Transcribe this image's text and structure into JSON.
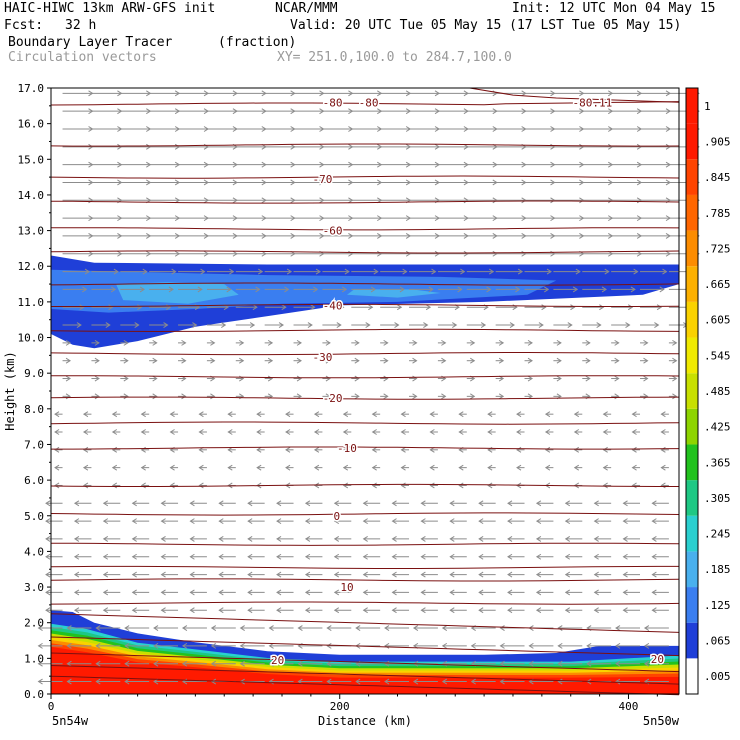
{
  "header": {
    "model": "HAIC-HIWC 13km ARW-GFS init",
    "org": "NCAR/MMM",
    "init": "Init: 12 UTC Mon 04 May 15",
    "fcst_label": "Fcst:",
    "fcst_value": "32 h",
    "valid": "Valid: 20 UTC Tue 05 May 15 (17 LST Tue 05 May 15)",
    "field": "Boundary Layer Tracer",
    "field_units": "(fraction)",
    "overlay": "Circulation vectors",
    "xy": "XY= 251.0,100.0 to 284.7,100.0"
  },
  "colors": {
    "contour_line": "#7a1010",
    "vector": "#8c8c8c",
    "low_blue": "#1f3fd8",
    "mid_blue": "#3a7ef0",
    "light_blue": "#49b0ee",
    "surface_red": "#ff1a00"
  },
  "chart_data": {
    "type": "heatmap",
    "title": "Boundary Layer Tracer (fraction)",
    "xlabel": "Distance (km)",
    "ylabel": "Height (km)",
    "xlim": [
      0,
      435
    ],
    "ylim": [
      0,
      17
    ],
    "x_ticks": [
      "0",
      "200",
      "400"
    ],
    "y_ticks": [
      "0.0",
      "1.0",
      "2.0",
      "3.0",
      "4.0",
      "5.0",
      "6.0",
      "7.0",
      "8.0",
      "9.0",
      "10.0",
      "11.0",
      "12.0",
      "13.0",
      "14.0",
      "15.0",
      "16.0",
      "17.0"
    ],
    "x_endpoints": [
      "5n54w",
      "5n50w"
    ],
    "colorbar": {
      "labels": [
        ".005",
        ".065",
        ".125",
        ".185",
        ".245",
        ".305",
        ".365",
        ".425",
        ".485",
        ".545",
        ".605",
        ".665",
        ".725",
        ".785",
        ".845",
        ".905",
        "1"
      ],
      "colors": [
        "#ffffff",
        "#1f3fd8",
        "#3a7ef0",
        "#49b0ee",
        "#2ad0d0",
        "#1ec884",
        "#22c21e",
        "#8ed400",
        "#c8e000",
        "#f0ea00",
        "#fad200",
        "#fcb000",
        "#fc8c00",
        "#ff6600",
        "#ff4400",
        "#ff1a00",
        "#ff1a00"
      ]
    },
    "isotherm_labels": [
      {
        "label": "-80",
        "x": 195,
        "y": 16.6
      },
      {
        "label": "-80",
        "x": 220,
        "y": 16.6
      },
      {
        "label": "-80.11",
        "x": 375,
        "y": 16.6
      },
      {
        "label": "-70",
        "x": 188,
        "y": 14.45
      },
      {
        "label": "-60",
        "x": 195,
        "y": 13.0
      },
      {
        "label": "-40",
        "x": 195,
        "y": 10.9
      },
      {
        "label": "-30",
        "x": 188,
        "y": 9.45
      },
      {
        "label": "-20",
        "x": 195,
        "y": 8.3
      },
      {
        "label": "-10",
        "x": 205,
        "y": 6.9
      },
      {
        "label": "0",
        "x": 198,
        "y": 5.0
      },
      {
        "label": "10",
        "x": 205,
        "y": 3.0
      },
      {
        "label": "20",
        "x": 157,
        "y": 0.95
      },
      {
        "label": "20",
        "x": 420,
        "y": 0.98
      }
    ],
    "isotherm_heights": [
      0.3,
      0.6,
      0.95,
      1.4,
      2.05,
      2.55,
      3.2,
      3.55,
      4.2,
      5.05,
      5.85,
      6.9,
      7.6,
      8.3,
      8.9,
      9.55,
      10.2,
      10.9,
      11.5,
      12.4,
      13.05,
      13.8,
      14.5,
      15.4,
      16.55
    ]
  }
}
